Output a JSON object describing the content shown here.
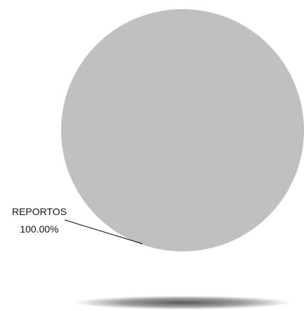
{
  "chart_data": {
    "type": "pie",
    "categories": [
      "REPORTOS"
    ],
    "values": [
      100.0
    ],
    "percent_labels": [
      "100.00%"
    ],
    "colors": [
      "#c0c0c0"
    ],
    "title": "",
    "legend": "none"
  }
}
